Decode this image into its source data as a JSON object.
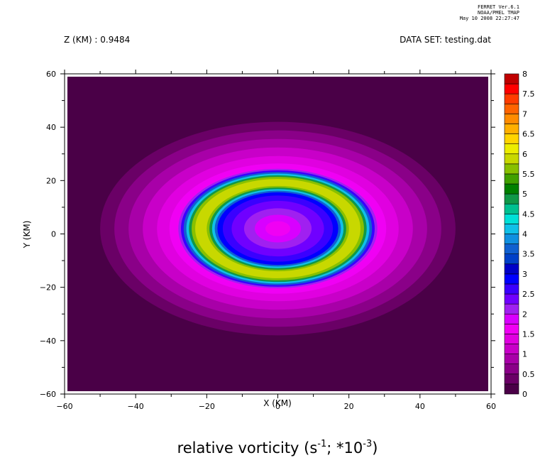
{
  "header": {
    "z_label": "Z (KM) : 0.9484",
    "dataset_label": "DATA SET: testing.dat",
    "stamp_lines": [
      "FERRET Ver.6.1",
      "NOAA/PMEL TMAP",
      "May 10 2008 22:27:47"
    ]
  },
  "chart_data": {
    "type": "heatmap",
    "title_main": "relative vorticity (s",
    "title_exp1": "-1",
    "title_mid": "; *10",
    "title_exp2": "-3",
    "title_end": ")",
    "xlabel": "X (KM)",
    "ylabel": "Y (KM)",
    "xlim": [
      -60,
      60
    ],
    "ylim": [
      -60,
      60
    ],
    "xticks": [
      -60,
      -40,
      -20,
      0,
      20,
      40,
      60
    ],
    "yticks": [
      -60,
      -40,
      -20,
      0,
      20,
      40,
      60
    ],
    "grid": false,
    "legend": "right colorbar",
    "colorbar_levels": [
      0,
      0.25,
      0.5,
      0.75,
      1,
      1.25,
      1.5,
      1.75,
      2,
      2.25,
      2.5,
      2.75,
      3,
      3.25,
      3.5,
      3.75,
      4,
      4.25,
      4.5,
      4.75,
      5,
      5.25,
      5.5,
      5.75,
      6,
      6.25,
      6.5,
      6.75,
      7,
      7.25,
      7.5,
      7.75,
      8
    ],
    "colorbar_labels": [
      "0",
      "0.5",
      "1",
      "1.5",
      "2",
      "2.5",
      "3",
      "3.5",
      "4",
      "4.5",
      "5",
      "5.5",
      "6",
      "6.5",
      "7",
      "7.5",
      "8"
    ],
    "colors": [
      "#4a0047",
      "#6a0066",
      "#8a0088",
      "#a800a8",
      "#c800c8",
      "#e000e0",
      "#f000f4",
      "#d800ff",
      "#a020f0",
      "#7000ff",
      "#3a00ff",
      "#0000ff",
      "#0000c8",
      "#0040c8",
      "#1060d0",
      "#1090e0",
      "#10c0e8",
      "#00e0d8",
      "#00c090",
      "#109848",
      "#008000",
      "#40a000",
      "#88c000",
      "#c8d800",
      "#ecec00",
      "#ffd400",
      "#ffb000",
      "#ff8c00",
      "#ff6400",
      "#ff3c00",
      "#ff0000",
      "#c00000",
      "#800000"
    ],
    "vortex": {
      "center": [
        0,
        2
      ],
      "outer_extent": [
        50,
        40
      ],
      "inner_ring_levels_from_center": [
        1.5,
        2.0,
        2.5,
        3.0,
        3.5,
        4.0,
        4.5,
        5.0,
        5.75
      ]
    }
  }
}
